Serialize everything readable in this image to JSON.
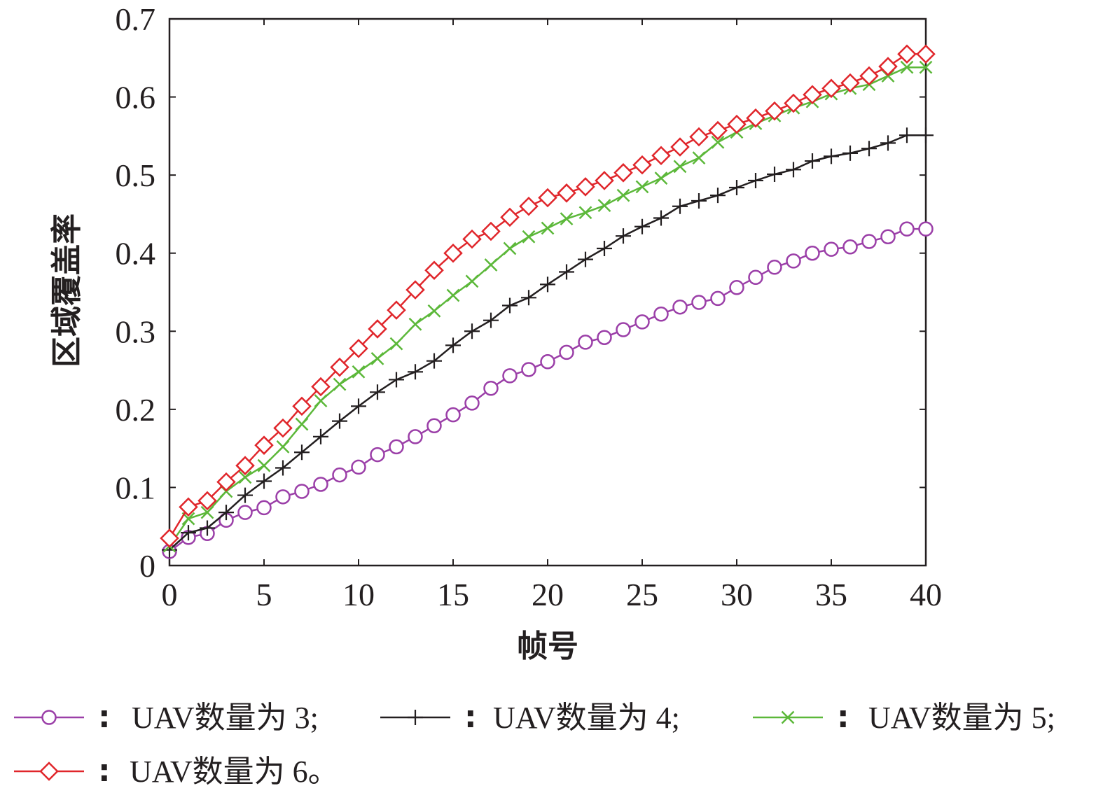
{
  "chart_data": {
    "type": "line",
    "xlabel": "帧号",
    "ylabel": "区域覆盖率",
    "xlim": [
      0,
      40
    ],
    "ylim": [
      0,
      0.7
    ],
    "xticks": [
      0,
      5,
      10,
      15,
      20,
      25,
      30,
      35,
      40
    ],
    "yticks": [
      0,
      0.1,
      0.2,
      0.3,
      0.4,
      0.5,
      0.6,
      0.7
    ],
    "xtick_labels": [
      "0",
      "5",
      "10",
      "15",
      "20",
      "25",
      "30",
      "35",
      "40"
    ],
    "ytick_labels": [
      "0",
      "0.1",
      "0.2",
      "0.3",
      "0.4",
      "0.5",
      "0.6",
      "0.7"
    ],
    "grid": false,
    "legend_position": "bottom",
    "x": [
      0,
      1,
      2,
      3,
      4,
      5,
      6,
      7,
      8,
      9,
      10,
      11,
      12,
      13,
      14,
      15,
      16,
      17,
      18,
      19,
      20,
      21,
      22,
      23,
      24,
      25,
      26,
      27,
      28,
      29,
      30,
      31,
      32,
      33,
      34,
      35,
      36,
      37,
      38,
      39,
      40
    ],
    "series": [
      {
        "name": "UAV数量为 3",
        "legend_label": "UAV数量为 3;",
        "color": "#9b3fa8",
        "marker": "circle",
        "values": [
          0.018,
          0.036,
          0.041,
          0.058,
          0.068,
          0.074,
          0.088,
          0.095,
          0.104,
          0.116,
          0.126,
          0.142,
          0.152,
          0.165,
          0.179,
          0.193,
          0.208,
          0.227,
          0.243,
          0.251,
          0.261,
          0.273,
          0.286,
          0.292,
          0.302,
          0.312,
          0.322,
          0.331,
          0.337,
          0.342,
          0.356,
          0.369,
          0.382,
          0.39,
          0.4,
          0.405,
          0.408,
          0.415,
          0.421,
          0.431,
          0.431
        ]
      },
      {
        "name": "UAV数量为 4",
        "legend_label": "UAV数量为 4;",
        "color": "#231f20",
        "marker": "plus",
        "values": [
          0.02,
          0.042,
          0.048,
          0.068,
          0.09,
          0.108,
          0.125,
          0.145,
          0.165,
          0.185,
          0.204,
          0.222,
          0.238,
          0.248,
          0.262,
          0.282,
          0.3,
          0.314,
          0.333,
          0.343,
          0.36,
          0.376,
          0.392,
          0.406,
          0.422,
          0.434,
          0.445,
          0.46,
          0.467,
          0.474,
          0.484,
          0.493,
          0.501,
          0.507,
          0.518,
          0.524,
          0.528,
          0.534,
          0.541,
          0.551,
          0.551
        ]
      },
      {
        "name": "UAV数量为 5",
        "legend_label": "UAV数量为 5;",
        "color": "#5cb83a",
        "marker": "x",
        "values": [
          0.025,
          0.06,
          0.068,
          0.095,
          0.113,
          0.128,
          0.152,
          0.181,
          0.211,
          0.232,
          0.248,
          0.265,
          0.284,
          0.309,
          0.326,
          0.346,
          0.364,
          0.385,
          0.406,
          0.421,
          0.432,
          0.444,
          0.452,
          0.461,
          0.474,
          0.485,
          0.496,
          0.511,
          0.522,
          0.542,
          0.555,
          0.566,
          0.576,
          0.586,
          0.594,
          0.604,
          0.611,
          0.616,
          0.627,
          0.638,
          0.638
        ]
      },
      {
        "name": "UAV数量为 6",
        "legend_label": "UAV数量为 6。",
        "color": "#e0262b",
        "marker": "diamond",
        "values": [
          0.035,
          0.075,
          0.083,
          0.107,
          0.128,
          0.154,
          0.176,
          0.204,
          0.229,
          0.254,
          0.278,
          0.303,
          0.327,
          0.353,
          0.378,
          0.4,
          0.418,
          0.428,
          0.446,
          0.46,
          0.471,
          0.477,
          0.485,
          0.493,
          0.503,
          0.513,
          0.525,
          0.536,
          0.549,
          0.557,
          0.565,
          0.573,
          0.582,
          0.592,
          0.603,
          0.611,
          0.618,
          0.627,
          0.639,
          0.655,
          0.655
        ]
      }
    ]
  }
}
